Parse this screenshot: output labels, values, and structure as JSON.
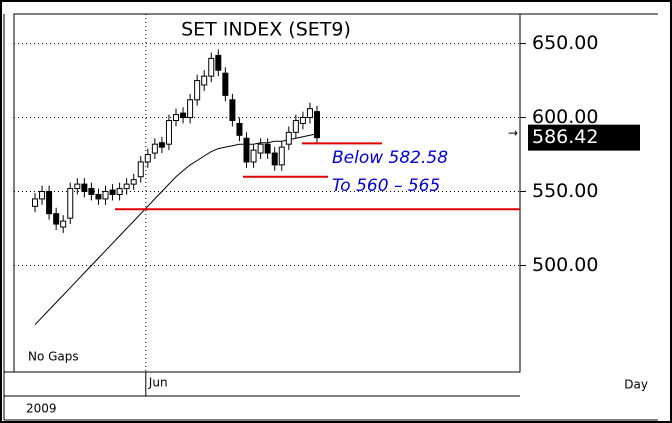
{
  "chart_data": {
    "type": "candlestick",
    "title": "SET INDEX (SET9)",
    "open": [
      540,
      545,
      550,
      535,
      526,
      532,
      552,
      555,
      552,
      548,
      545,
      551,
      548,
      552,
      555,
      560,
      570,
      576,
      583,
      582,
      598,
      603,
      600,
      612,
      622,
      628,
      642,
      630,
      612,
      596,
      586,
      570,
      576,
      582,
      576,
      568,
      582,
      590,
      596,
      600,
      604
    ],
    "high": [
      549,
      554,
      554,
      539,
      534,
      556,
      559,
      559,
      556,
      552,
      554,
      555,
      556,
      559,
      562,
      574,
      579,
      586,
      587,
      602,
      606,
      607,
      616,
      629,
      632,
      644,
      646,
      634,
      616,
      600,
      590,
      582,
      586,
      586,
      580,
      584,
      594,
      602,
      604,
      610,
      608
    ],
    "low": [
      536,
      541,
      531,
      524,
      522,
      528,
      548,
      546,
      544,
      541,
      541,
      544,
      544,
      548,
      551,
      556,
      566,
      572,
      576,
      578,
      594,
      596,
      596,
      608,
      618,
      624,
      628,
      611,
      594,
      584,
      566,
      566,
      572,
      572,
      564,
      564,
      578,
      586,
      592,
      596,
      582
    ],
    "close": [
      545,
      550,
      535,
      528,
      530,
      552,
      555,
      550,
      548,
      545,
      550,
      548,
      552,
      555,
      558,
      570,
      575,
      582,
      580,
      598,
      602,
      600,
      612,
      625,
      628,
      640,
      632,
      615,
      598,
      588,
      570,
      578,
      582,
      576,
      568,
      580,
      590,
      598,
      600,
      606,
      586.42
    ],
    "moving_average": [
      460,
      465,
      470,
      475,
      480,
      485,
      490,
      495,
      500,
      505,
      510,
      515,
      520,
      525,
      530,
      535,
      540,
      545,
      550,
      555,
      560,
      564,
      568,
      571,
      574,
      577,
      579,
      580,
      581,
      582,
      582,
      582,
      583,
      583,
      584,
      584,
      585,
      586,
      587,
      588,
      589
    ],
    "ylim": [
      428,
      670
    ],
    "yticks": [
      {
        "value": 650,
        "label": "650.00"
      },
      {
        "value": 600,
        "label": "600.00"
      },
      {
        "value": 550,
        "label": "550.00"
      },
      {
        "value": 500,
        "label": "500.00"
      }
    ],
    "xticks": [
      {
        "value": 16,
        "label": "Jun"
      }
    ],
    "year": "2009",
    "period": "Day",
    "note": "No Gaps",
    "last_price": {
      "value": 586.42,
      "label": "586.42"
    },
    "levels": [
      538,
      582.58,
      560
    ],
    "annotations": [
      "Below 582.58",
      "To 560 – 565"
    ],
    "grid": true
  }
}
